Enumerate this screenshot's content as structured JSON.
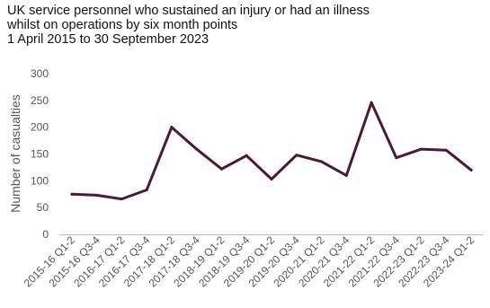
{
  "chart_data": {
    "type": "line",
    "title_lines": [
      "UK service personnel who sustained an injury or had an illness",
      "whilst on operations by six month points",
      "1 April 2015 to 30 September 2023"
    ],
    "xlabel": "",
    "ylabel": "Number of casualties",
    "ylim": [
      0,
      300
    ],
    "yticks": [
      0,
      50,
      100,
      150,
      200,
      250,
      300
    ],
    "categories": [
      "2015-16 Q1-2",
      "2015-16 Q3-4",
      "2016-17 Q1-2",
      "2016-17 Q3-4",
      "2017-18 Q1-2",
      "2017-18 Q3-4",
      "2018-19 Q1-2",
      "2018-19 Q3-4",
      "2019-20 Q1-2",
      "2019-20 Q3-4",
      "2020-21 Q1-2",
      "2020-21 Q3-4",
      "2021-22 Q1-2",
      "2021-22 Q3-4",
      "2022-23 Q1-2",
      "2022-23 Q3-4",
      "2023-24 Q1-2"
    ],
    "series": [
      {
        "values": [
          75,
          73,
          66,
          83,
          200,
          159,
          122,
          147,
          103,
          148,
          136,
          110,
          246,
          143,
          159,
          157,
          120
        ],
        "color": "#4d1a35"
      }
    ],
    "grid": false,
    "legend": "none"
  }
}
